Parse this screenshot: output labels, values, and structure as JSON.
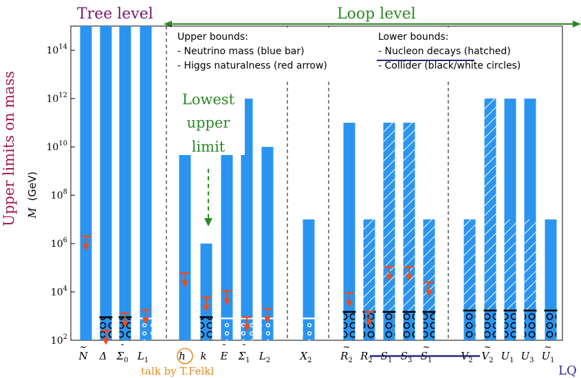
{
  "header": {
    "tree_level": "Tree level",
    "loop_level": "Loop level"
  },
  "yaxis": {
    "outer_title": "Upper limits on mass",
    "inner_label_var": "M",
    "inner_label_unit": "(GeV)"
  },
  "legend": {
    "upper_title": "Upper bounds:",
    "upper_items": [
      "- Neutrino mass (blue bar)",
      "- Higgs naturalness (red arrow)"
    ],
    "lower_title": "Lower bounds:",
    "lower_items": [
      "- Nucleon decays (hatched)",
      "- Collider (black/white circles)"
    ]
  },
  "annotation": {
    "line1": "Lowest",
    "line2": "upper",
    "line3": "limit"
  },
  "footer": {
    "talk_note": "talk by T.Felkl",
    "lq_label": "LQ"
  },
  "colors": {
    "bar": "#2a94f0",
    "arrow": "#ea4d1e",
    "header_tree": "#7a1670",
    "header_loop": "#2a8a22",
    "annotation": "#2a8a22",
    "outer_title": "#a51a46",
    "talk_note": "#e38a1d",
    "lq_label": "#2a2a8c",
    "strike": "#22227a"
  },
  "chart_data": {
    "type": "bar",
    "yscale": "log",
    "ylim": [
      100,
      1000000000000000.0
    ],
    "yticks": [
      100,
      10000,
      1000000,
      100000000,
      10000000000,
      1000000000000,
      100000000000000
    ],
    "ytick_labels": [
      "10^2",
      "10^4",
      "10^6",
      "10^8",
      "10^10",
      "10^12",
      "10^14"
    ],
    "categories": [
      {
        "base": "N",
        "acc": "~",
        "sub": "",
        "neutrino": 1000000000000000.0,
        "higgs": 2000000.0,
        "hatch": null,
        "collider": null
      },
      {
        "base": "Δ",
        "acc": "",
        "sub": "",
        "neutrino": 1000000000000000.0,
        "higgs": 250,
        "hatch": null,
        "collider": 900
      },
      {
        "base": "Σ",
        "acc": "¯",
        "sub": "0",
        "neutrino": 1000000000000000.0,
        "higgs": 1300,
        "hatch": null,
        "collider": 900
      },
      {
        "base": "L",
        "acc": "",
        "sub": "1",
        "neutrino": 1000000000000000.0,
        "higgs": 1800,
        "hatch": null,
        "collider": 800
      },
      {
        "base": "h",
        "acc": "",
        "sub": "",
        "neutrino": 10000000000.0,
        "higgs": 60000,
        "hatch": null,
        "collider": null,
        "circled": true
      },
      {
        "base": "k",
        "acc": "",
        "sub": "",
        "neutrino": 1000000.0,
        "higgs": 6000,
        "hatch": null,
        "collider": 900
      },
      {
        "base": "E",
        "acc": "¯",
        "sub": "",
        "neutrino": 10000000000.0,
        "higgs": 11000,
        "hatch": null,
        "collider": 800
      },
      {
        "base": "Σ",
        "acc": "¯",
        "sub": "1",
        "neutrino": 1000000000000.0,
        "higgs": 900,
        "hatch": null,
        "collider": 800
      },
      {
        "base": "L",
        "acc": "",
        "sub": "2",
        "neutrino": 10000000000.0,
        "higgs": 2000,
        "hatch": null,
        "collider": 800
      },
      {
        "base": "X",
        "acc": "",
        "sub": "2",
        "neutrino": 10000000.0,
        "higgs": null,
        "hatch": null,
        "collider": 800
      },
      {
        "base": "R",
        "acc": "~",
        "sub": "2",
        "neutrino": 100000000000.0,
        "higgs": 9000,
        "hatch": null,
        "collider": 1500
      },
      {
        "base": "R",
        "acc": "",
        "sub": "2",
        "neutrino": 10000000.0,
        "higgs": 1500,
        "hatch": 10000000.0,
        "collider": 1500
      },
      {
        "base": "S",
        "acc": "",
        "sub": "1",
        "neutrino": 100000000000.0,
        "higgs": 110000,
        "hatch": 100000000000.0,
        "collider": 1500
      },
      {
        "base": "S",
        "acc": "",
        "sub": "3",
        "neutrino": 100000000000.0,
        "higgs": 110000,
        "hatch": 100000000000.0,
        "collider": 1500
      },
      {
        "base": "S",
        "acc": "~",
        "sub": "1",
        "neutrino": 10000000.0,
        "higgs": 25000,
        "hatch": 10000000.0,
        "collider": 1500
      },
      {
        "base": "V",
        "acc": "",
        "sub": "2",
        "neutrino": 10000000.0,
        "higgs": null,
        "hatch": 10000000.0,
        "collider": 1700
      },
      {
        "base": "V",
        "acc": "~",
        "sub": "2",
        "neutrino": 1000000000000.0,
        "higgs": null,
        "hatch": 1000000000000.0,
        "collider": 1700
      },
      {
        "base": "U",
        "acc": "",
        "sub": "1",
        "neutrino": 1000000000000.0,
        "higgs": null,
        "hatch": 10000000.0,
        "collider": 1700
      },
      {
        "base": "U",
        "acc": "",
        "sub": "3",
        "neutrino": 1000000000000.0,
        "higgs": null,
        "hatch": 10000000.0,
        "collider": 1700
      },
      {
        "base": "U",
        "acc": "~",
        "sub": "1",
        "neutrino": 10000000.0,
        "higgs": null,
        "hatch": null,
        "collider": 1700
      }
    ]
  }
}
